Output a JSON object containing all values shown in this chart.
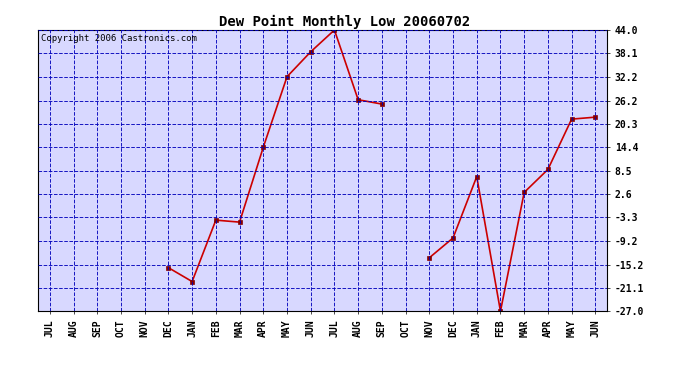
{
  "title": "Dew Point Monthly Low 20060702",
  "copyright": "Copyright 2006 Castronics.com",
  "x_labels": [
    "JUL",
    "AUG",
    "SEP",
    "OCT",
    "NOV",
    "DEC",
    "JAN",
    "FEB",
    "MAR",
    "APR",
    "MAY",
    "JUN",
    "JUL",
    "AUG",
    "SEP",
    "OCT",
    "NOV",
    "DEC",
    "JAN",
    "FEB",
    "MAR",
    "APR",
    "MAY",
    "JUN"
  ],
  "y_values": [
    null,
    null,
    null,
    null,
    null,
    -16.0,
    -19.5,
    -4.0,
    -4.5,
    14.4,
    32.2,
    38.5,
    44.0,
    26.4,
    25.3,
    null,
    -13.5,
    -8.5,
    7.0,
    -27.0,
    3.0,
    8.8,
    21.5,
    22.0
  ],
  "yticks": [
    44.0,
    38.1,
    32.2,
    26.2,
    20.3,
    14.4,
    8.5,
    2.6,
    -3.3,
    -9.2,
    -15.2,
    -21.1,
    -27.0
  ],
  "ymin": -27.0,
  "ymax": 44.0,
  "bg_color": "#d8d8ff",
  "line_color": "#cc0000",
  "marker_color": "#880000",
  "grid_color": "#0000bb",
  "title_color": "#000000",
  "border_color": "#000000",
  "outer_bg": "#ffffff",
  "title_fontsize": 10,
  "tick_fontsize": 7,
  "copyright_fontsize": 6.5
}
